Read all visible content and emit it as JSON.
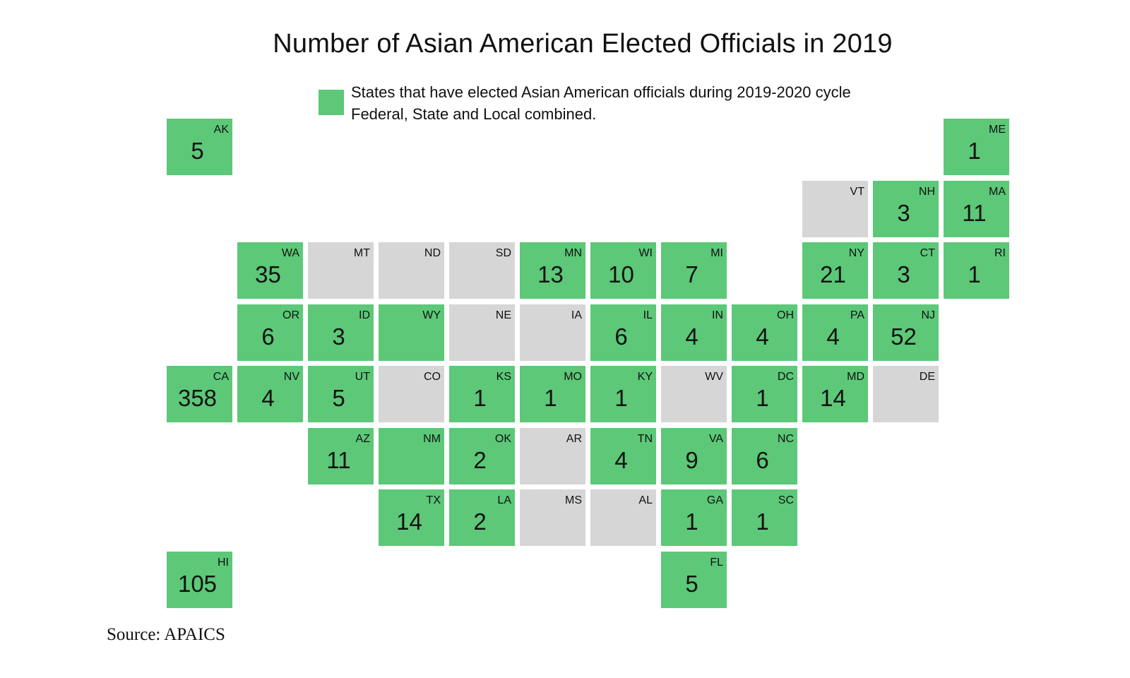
{
  "title": "Number of Asian American Elected Officials in 2019",
  "legend": {
    "line1": "States that have elected Asian American officials during 2019-2020 cycle",
    "line2": "Federal, State and Local combined.",
    "color": "#5cc878"
  },
  "colors": {
    "has_officials": "#5cc878",
    "none": "#d6d6d6"
  },
  "source": "Source: APAICS",
  "states": [
    {
      "abbr": "AK",
      "count": "5",
      "col": 0,
      "row": 0,
      "has": true
    },
    {
      "abbr": "ME",
      "count": "1",
      "col": 11,
      "row": 0,
      "has": true
    },
    {
      "abbr": "VT",
      "count": "",
      "col": 9,
      "row": 1,
      "has": false
    },
    {
      "abbr": "NH",
      "count": "3",
      "col": 10,
      "row": 1,
      "has": true
    },
    {
      "abbr": "MA",
      "count": "11",
      "col": 11,
      "row": 1,
      "has": true
    },
    {
      "abbr": "WA",
      "count": "35",
      "col": 1,
      "row": 2,
      "has": true
    },
    {
      "abbr": "MT",
      "count": "",
      "col": 2,
      "row": 2,
      "has": false
    },
    {
      "abbr": "ND",
      "count": "",
      "col": 3,
      "row": 2,
      "has": false
    },
    {
      "abbr": "SD",
      "count": "",
      "col": 4,
      "row": 2,
      "has": false
    },
    {
      "abbr": "MN",
      "count": "13",
      "col": 5,
      "row": 2,
      "has": true
    },
    {
      "abbr": "WI",
      "count": "10",
      "col": 6,
      "row": 2,
      "has": true
    },
    {
      "abbr": "MI",
      "count": "7",
      "col": 7,
      "row": 2,
      "has": true
    },
    {
      "abbr": "NY",
      "count": "21",
      "col": 9,
      "row": 2,
      "has": true
    },
    {
      "abbr": "CT",
      "count": "3",
      "col": 10,
      "row": 2,
      "has": true
    },
    {
      "abbr": "RI",
      "count": "1",
      "col": 11,
      "row": 2,
      "has": true
    },
    {
      "abbr": "OR",
      "count": "6",
      "col": 1,
      "row": 3,
      "has": true
    },
    {
      "abbr": "ID",
      "count": "3",
      "col": 2,
      "row": 3,
      "has": true
    },
    {
      "abbr": "WY",
      "count": "",
      "col": 3,
      "row": 3,
      "has": true
    },
    {
      "abbr": "NE",
      "count": "",
      "col": 4,
      "row": 3,
      "has": false
    },
    {
      "abbr": "IA",
      "count": "",
      "col": 5,
      "row": 3,
      "has": false
    },
    {
      "abbr": "IL",
      "count": "6",
      "col": 6,
      "row": 3,
      "has": true
    },
    {
      "abbr": "IN",
      "count": "4",
      "col": 7,
      "row": 3,
      "has": true
    },
    {
      "abbr": "OH",
      "count": "4",
      "col": 8,
      "row": 3,
      "has": true
    },
    {
      "abbr": "PA",
      "count": "4",
      "col": 9,
      "row": 3,
      "has": true
    },
    {
      "abbr": "NJ",
      "count": "52",
      "col": 10,
      "row": 3,
      "has": true
    },
    {
      "abbr": "CA",
      "count": "358",
      "col": 0,
      "row": 4,
      "has": true
    },
    {
      "abbr": "NV",
      "count": "4",
      "col": 1,
      "row": 4,
      "has": true
    },
    {
      "abbr": "UT",
      "count": "5",
      "col": 2,
      "row": 4,
      "has": true
    },
    {
      "abbr": "CO",
      "count": "",
      "col": 3,
      "row": 4,
      "has": false
    },
    {
      "abbr": "KS",
      "count": "1",
      "col": 4,
      "row": 4,
      "has": true
    },
    {
      "abbr": "MO",
      "count": "1",
      "col": 5,
      "row": 4,
      "has": true
    },
    {
      "abbr": "KY",
      "count": "1",
      "col": 6,
      "row": 4,
      "has": true
    },
    {
      "abbr": "WV",
      "count": "",
      "col": 7,
      "row": 4,
      "has": false
    },
    {
      "abbr": "DC",
      "count": "1",
      "col": 8,
      "row": 4,
      "has": true
    },
    {
      "abbr": "MD",
      "count": "14",
      "col": 9,
      "row": 4,
      "has": true
    },
    {
      "abbr": "DE",
      "count": "",
      "col": 10,
      "row": 4,
      "has": false
    },
    {
      "abbr": "AZ",
      "count": "11",
      "col": 2,
      "row": 5,
      "has": true
    },
    {
      "abbr": "NM",
      "count": "",
      "col": 3,
      "row": 5,
      "has": true
    },
    {
      "abbr": "OK",
      "count": "2",
      "col": 4,
      "row": 5,
      "has": true
    },
    {
      "abbr": "AR",
      "count": "",
      "col": 5,
      "row": 5,
      "has": false
    },
    {
      "abbr": "TN",
      "count": "4",
      "col": 6,
      "row": 5,
      "has": true
    },
    {
      "abbr": "VA",
      "count": "9",
      "col": 7,
      "row": 5,
      "has": true
    },
    {
      "abbr": "NC",
      "count": "6",
      "col": 8,
      "row": 5,
      "has": true
    },
    {
      "abbr": "TX",
      "count": "14",
      "col": 3,
      "row": 6,
      "has": true
    },
    {
      "abbr": "LA",
      "count": "2",
      "col": 4,
      "row": 6,
      "has": true
    },
    {
      "abbr": "MS",
      "count": "",
      "col": 5,
      "row": 6,
      "has": false
    },
    {
      "abbr": "AL",
      "count": "",
      "col": 6,
      "row": 6,
      "has": false
    },
    {
      "abbr": "GA",
      "count": "1",
      "col": 7,
      "row": 6,
      "has": true
    },
    {
      "abbr": "SC",
      "count": "1",
      "col": 8,
      "row": 6,
      "has": true
    },
    {
      "abbr": "HI",
      "count": "105",
      "col": 0,
      "row": 7,
      "has": true
    },
    {
      "abbr": "FL",
      "count": "5",
      "col": 7,
      "row": 7,
      "has": true
    }
  ]
}
